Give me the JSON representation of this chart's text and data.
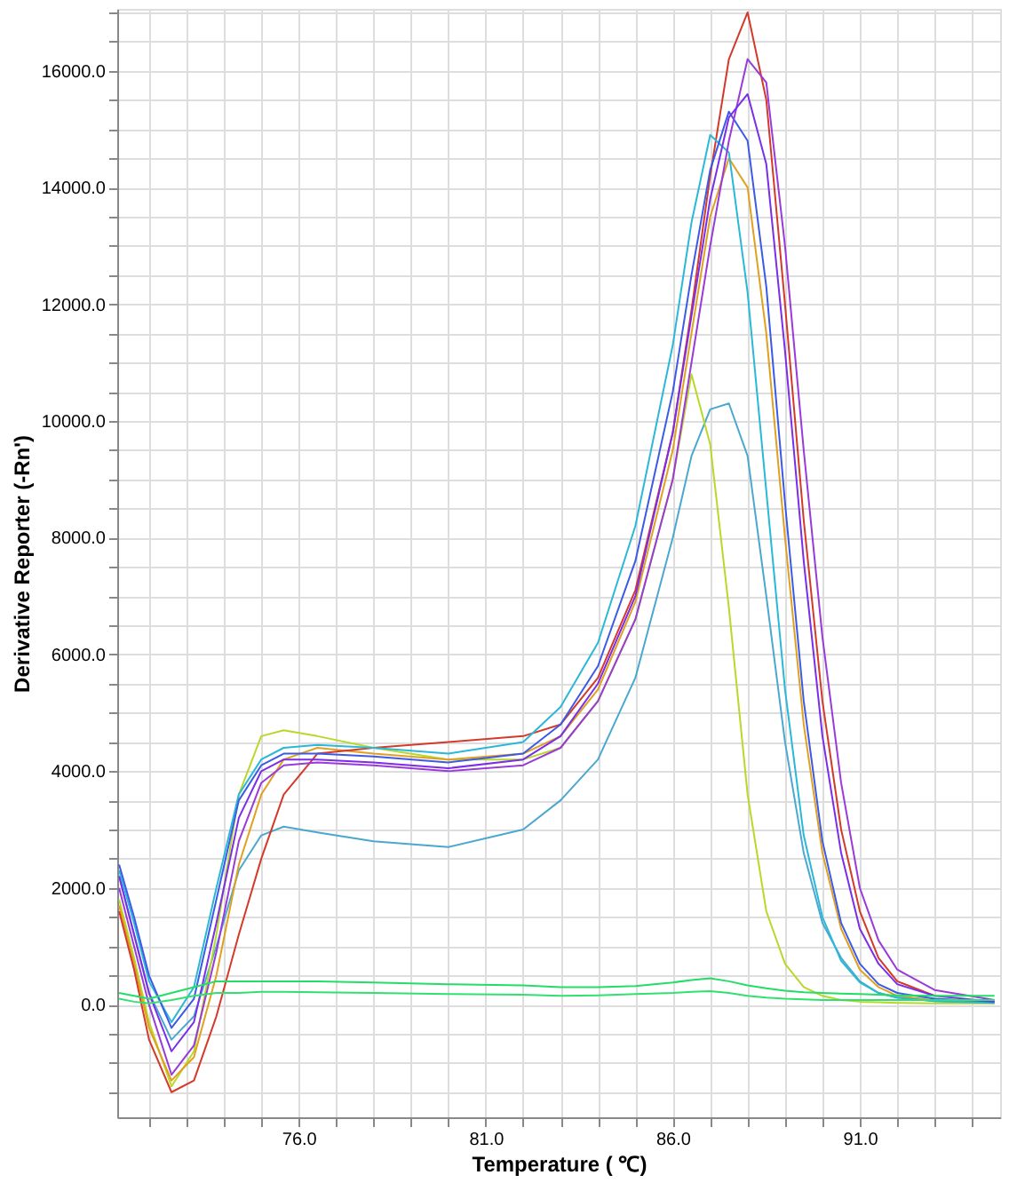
{
  "chart_data": {
    "type": "line",
    "xlabel": "Temperature ( ℃)",
    "ylabel": "Derivative Reporter (-Rn')",
    "x": [
      71.2,
      71.6,
      72,
      72.6,
      73.2,
      73.8,
      74.4,
      75,
      75.6,
      76.5,
      78,
      80,
      82,
      83,
      84,
      85,
      86,
      86.5,
      87,
      87.5,
      88,
      88.5,
      89,
      89.5,
      90,
      90.5,
      91,
      91.5,
      92,
      93,
      94.6
    ],
    "series": [
      {
        "color": "#4aa8d0",
        "values": [
          2200,
          1200,
          200,
          -600,
          -200,
          1000,
          2300,
          2900,
          3050,
          2950,
          2800,
          2700,
          3000,
          3500,
          4200,
          5600,
          8000,
          9400,
          10200,
          10300,
          9400,
          7000,
          4500,
          2600,
          1400,
          800,
          400,
          200,
          120,
          60,
          30
        ]
      },
      {
        "color": "#b8d82a",
        "values": [
          1800,
          800,
          -300,
          -1400,
          -800,
          1200,
          3600,
          4600,
          4700,
          4600,
          4400,
          4200,
          4200,
          4400,
          5200,
          6600,
          9000,
          10800,
          9600,
          6800,
          3600,
          1600,
          700,
          300,
          150,
          80,
          50,
          40,
          30,
          20,
          20
        ]
      },
      {
        "color": "#e0a020",
        "values": [
          1700,
          700,
          -400,
          -1300,
          -900,
          500,
          2400,
          3600,
          4200,
          4400,
          4300,
          4200,
          4300,
          4600,
          5400,
          6900,
          9500,
          11500,
          13500,
          14500,
          14000,
          11500,
          8000,
          4800,
          2600,
          1300,
          600,
          300,
          150,
          70,
          30
        ]
      },
      {
        "color": "#d43a2a",
        "values": [
          1600,
          600,
          -600,
          -1500,
          -1300,
          -200,
          1200,
          2500,
          3600,
          4300,
          4400,
          4500,
          4600,
          4800,
          5600,
          7100,
          9800,
          11900,
          14200,
          16200,
          17000,
          15500,
          12000,
          8300,
          5200,
          3000,
          1600,
          800,
          400,
          150,
          null
        ]
      },
      {
        "color": "#2ab8d8",
        "values": [
          2300,
          1400,
          400,
          -300,
          300,
          2000,
          3600,
          4200,
          4400,
          4450,
          4400,
          4300,
          4500,
          5100,
          6200,
          8200,
          11300,
          13400,
          14900,
          14600,
          12200,
          8800,
          5400,
          2900,
          1500,
          750,
          380,
          200,
          120,
          60,
          30
        ]
      },
      {
        "color": "#3c5ae6",
        "values": [
          2400,
          1500,
          500,
          -400,
          100,
          1800,
          3500,
          4100,
          4300,
          4300,
          4250,
          4150,
          4300,
          4800,
          5800,
          7600,
          10500,
          12500,
          14300,
          15300,
          14800,
          12300,
          8600,
          5200,
          2800,
          1400,
          700,
          350,
          200,
          100,
          50
        ]
      },
      {
        "color": "#9a3ad8",
        "values": [
          2000,
          1000,
          0,
          -1200,
          -700,
          900,
          2800,
          3800,
          4100,
          4150,
          4100,
          4000,
          4100,
          4400,
          5200,
          6600,
          9000,
          11000,
          13000,
          14800,
          16200,
          15800,
          13000,
          9500,
          6300,
          3800,
          2000,
          1100,
          600,
          250,
          80
        ]
      },
      {
        "color": "#7a2ee8",
        "values": [
          2200,
          1200,
          200,
          -800,
          -300,
          1400,
          3200,
          4000,
          4200,
          4200,
          4150,
          4050,
          4200,
          4600,
          5500,
          7000,
          9800,
          11800,
          13800,
          15200,
          15600,
          14400,
          11200,
          7600,
          4600,
          2600,
          1300,
          700,
          350,
          150,
          50
        ]
      },
      {
        "color": "#22dd66",
        "values": [
          200,
          150,
          100,
          200,
          300,
          400,
          400,
          400,
          400,
          400,
          380,
          350,
          330,
          300,
          300,
          320,
          380,
          420,
          450,
          400,
          330,
          280,
          240,
          210,
          200,
          190,
          180,
          170,
          160,
          150,
          150
        ]
      },
      {
        "color": "#30e070",
        "values": [
          100,
          50,
          20,
          80,
          150,
          200,
          200,
          220,
          220,
          210,
          200,
          180,
          170,
          150,
          160,
          180,
          200,
          220,
          230,
          200,
          150,
          120,
          100,
          90,
          80,
          80,
          80,
          80,
          80,
          80,
          80
        ]
      }
    ],
    "xlim": [
      71.15,
      94.75
    ],
    "ylim": [
      -1930,
      17060
    ],
    "xticks": [
      {
        "value": 72,
        "label": null
      },
      {
        "value": 73,
        "label": null
      },
      {
        "value": 74,
        "label": null
      },
      {
        "value": 75,
        "label": null
      },
      {
        "value": 76,
        "label": "76.0"
      },
      {
        "value": 77,
        "label": null
      },
      {
        "value": 78,
        "label": null
      },
      {
        "value": 79,
        "label": null
      },
      {
        "value": 80,
        "label": null
      },
      {
        "value": 81,
        "label": "81.0"
      },
      {
        "value": 82,
        "label": null
      },
      {
        "value": 83,
        "label": null
      },
      {
        "value": 84,
        "label": null
      },
      {
        "value": 85,
        "label": null
      },
      {
        "value": 86,
        "label": "86.0"
      },
      {
        "value": 87,
        "label": null
      },
      {
        "value": 88,
        "label": null
      },
      {
        "value": 89,
        "label": null
      },
      {
        "value": 90,
        "label": null
      },
      {
        "value": 91,
        "label": "91.0"
      },
      {
        "value": 92,
        "label": null
      },
      {
        "value": 93,
        "label": null
      },
      {
        "value": 94,
        "label": null
      }
    ],
    "yticks": [
      {
        "value": -1500,
        "label": null
      },
      {
        "value": -1000,
        "label": null
      },
      {
        "value": -500,
        "label": null
      },
      {
        "value": 0,
        "label": "0.0"
      },
      {
        "value": 500,
        "label": null
      },
      {
        "value": 1000,
        "label": null
      },
      {
        "value": 1500,
        "label": null
      },
      {
        "value": 2000,
        "label": "2000.0"
      },
      {
        "value": 2500,
        "label": null
      },
      {
        "value": 3000,
        "label": null
      },
      {
        "value": 3500,
        "label": null
      },
      {
        "value": 4000,
        "label": "4000.0"
      },
      {
        "value": 4500,
        "label": null
      },
      {
        "value": 5000,
        "label": null
      },
      {
        "value": 5500,
        "label": null
      },
      {
        "value": 6000,
        "label": "6000.0"
      },
      {
        "value": 6500,
        "label": null
      },
      {
        "value": 7000,
        "label": null
      },
      {
        "value": 7500,
        "label": null
      },
      {
        "value": 8000,
        "label": "8000.0"
      },
      {
        "value": 8500,
        "label": null
      },
      {
        "value": 9000,
        "label": null
      },
      {
        "value": 9500,
        "label": null
      },
      {
        "value": 10000,
        "label": "10000.0"
      },
      {
        "value": 10500,
        "label": null
      },
      {
        "value": 11000,
        "label": null
      },
      {
        "value": 11500,
        "label": null
      },
      {
        "value": 12000,
        "label": "12000.0"
      },
      {
        "value": 12500,
        "label": null
      },
      {
        "value": 13000,
        "label": null
      },
      {
        "value": 13500,
        "label": null
      },
      {
        "value": 14000,
        "label": "14000.0"
      },
      {
        "value": 14500,
        "label": null
      },
      {
        "value": 15000,
        "label": null
      },
      {
        "value": 15500,
        "label": null
      },
      {
        "value": 16000,
        "label": "16000.0"
      },
      {
        "value": 16500,
        "label": null
      },
      {
        "value": 17000,
        "label": null
      }
    ],
    "grid": true,
    "legend": false,
    "marker": "none",
    "line_style": "solid"
  }
}
